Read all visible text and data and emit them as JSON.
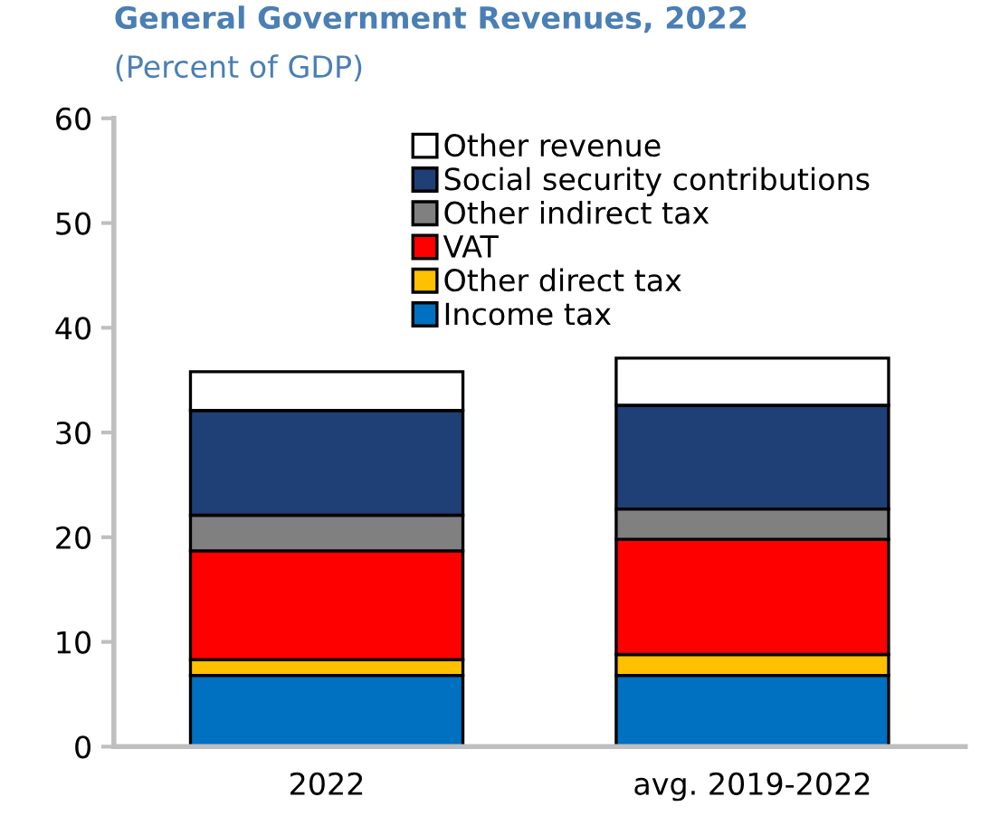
{
  "chart_data": {
    "type": "bar",
    "stacked": true,
    "title": "General Government Revenues, 2022",
    "subtitle": "(Percent of GDP)",
    "categories": [
      "2022",
      "avg. 2019-2022"
    ],
    "series": [
      {
        "name": "Income tax",
        "color": "#0070c0",
        "values": [
          6.8,
          6.8
        ]
      },
      {
        "name": "Other direct tax",
        "color": "#ffc000",
        "values": [
          1.5,
          2.0
        ]
      },
      {
        "name": "VAT",
        "color": "#ff0000",
        "values": [
          10.4,
          11.0
        ]
      },
      {
        "name": "Other indirect tax",
        "color": "#808080",
        "values": [
          3.4,
          2.9
        ]
      },
      {
        "name": "Social security contributions",
        "color": "#1f3f77",
        "values": [
          10.0,
          9.9
        ]
      },
      {
        "name": "Other revenue",
        "color": "#ffffff",
        "values": [
          3.7,
          4.5
        ]
      }
    ],
    "ylim": [
      0,
      60
    ],
    "yticks": [
      0,
      10,
      20,
      30,
      40,
      50,
      60
    ],
    "grid": false,
    "legend": "top"
  }
}
